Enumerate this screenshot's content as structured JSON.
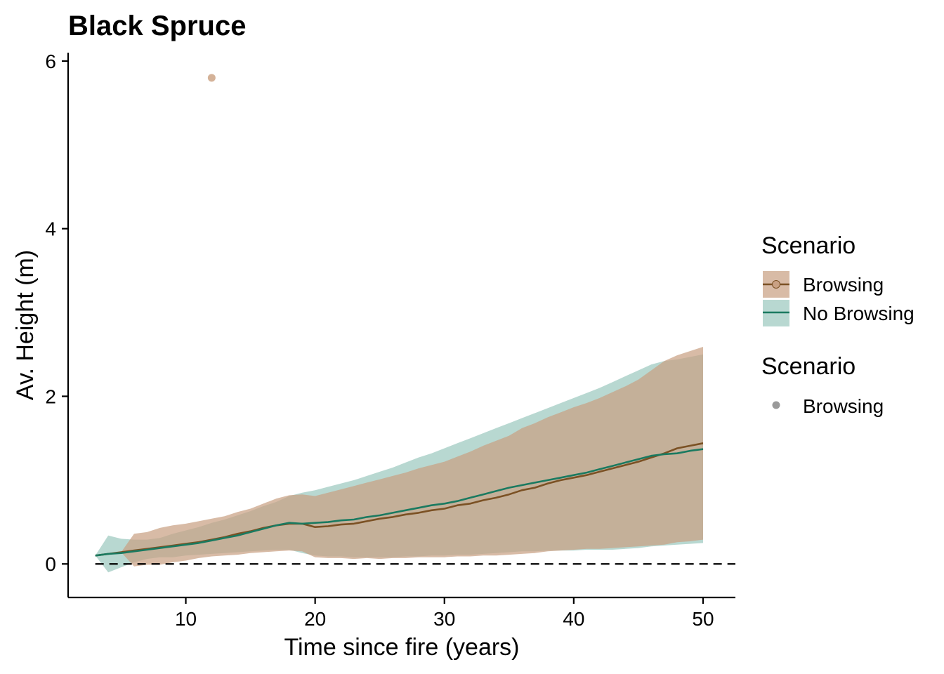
{
  "chart_data": {
    "type": "line",
    "title": "Black Spruce",
    "xlabel": "Time since fire (years)",
    "ylabel": "Av. Height (m)",
    "xlim": [
      0.9,
      52.5
    ],
    "ylim": [
      -0.4,
      6.1
    ],
    "xticks": [
      10,
      20,
      30,
      40,
      50
    ],
    "yticks": [
      0,
      2,
      4,
      6
    ],
    "reference_line": {
      "y": 0,
      "style": "dashed"
    },
    "grid": false,
    "legend_position": "right",
    "legends": [
      {
        "title": "Scenario",
        "entries": [
          "Browsing",
          "No Browsing"
        ]
      },
      {
        "title": "Scenario",
        "entries": [
          "Browsing"
        ]
      }
    ],
    "x": [
      3,
      4,
      5,
      6,
      7,
      8,
      9,
      10,
      11,
      12,
      13,
      14,
      15,
      16,
      17,
      18,
      19,
      20,
      21,
      22,
      23,
      24,
      25,
      26,
      27,
      28,
      29,
      30,
      31,
      32,
      33,
      34,
      35,
      36,
      37,
      38,
      39,
      40,
      41,
      42,
      43,
      44,
      45,
      46,
      47,
      48,
      49,
      50
    ],
    "series": [
      {
        "name": "Browsing",
        "color": "#7b5124",
        "band_color": "#c9a184",
        "mean": [
          0.1,
          0.12,
          0.14,
          0.16,
          0.18,
          0.2,
          0.22,
          0.24,
          0.26,
          0.29,
          0.32,
          0.36,
          0.39,
          0.43,
          0.46,
          0.48,
          0.48,
          0.44,
          0.45,
          0.47,
          0.48,
          0.51,
          0.54,
          0.56,
          0.59,
          0.61,
          0.64,
          0.66,
          0.7,
          0.72,
          0.76,
          0.79,
          0.83,
          0.88,
          0.91,
          0.96,
          1.0,
          1.03,
          1.06,
          1.1,
          1.14,
          1.18,
          1.22,
          1.27,
          1.32,
          1.38,
          1.41,
          1.44
        ],
        "lower": [
          0.1,
          0.12,
          0.14,
          -0.03,
          -0.01,
          -0.01,
          0.02,
          0.04,
          0.07,
          0.09,
          0.1,
          0.11,
          0.13,
          0.14,
          0.15,
          0.16,
          0.15,
          0.08,
          0.07,
          0.07,
          0.06,
          0.07,
          0.06,
          0.07,
          0.07,
          0.08,
          0.08,
          0.08,
          0.09,
          0.09,
          0.1,
          0.1,
          0.11,
          0.12,
          0.13,
          0.15,
          0.16,
          0.17,
          0.18,
          0.18,
          0.19,
          0.2,
          0.21,
          0.22,
          0.23,
          0.26,
          0.27,
          0.29
        ],
        "upper": [
          0.1,
          0.12,
          0.14,
          0.36,
          0.38,
          0.43,
          0.46,
          0.48,
          0.51,
          0.54,
          0.57,
          0.62,
          0.66,
          0.72,
          0.78,
          0.82,
          0.83,
          0.81,
          0.85,
          0.89,
          0.93,
          0.97,
          1.01,
          1.05,
          1.09,
          1.14,
          1.18,
          1.22,
          1.28,
          1.34,
          1.41,
          1.47,
          1.53,
          1.62,
          1.68,
          1.75,
          1.81,
          1.87,
          1.92,
          1.98,
          2.05,
          2.12,
          2.2,
          2.31,
          2.42,
          2.49,
          2.54,
          2.59
        ]
      },
      {
        "name": "No Browsing",
        "color": "#1a7a60",
        "band_color": "#9cc9bf",
        "mean": [
          0.1,
          0.12,
          0.13,
          0.15,
          0.17,
          0.19,
          0.21,
          0.23,
          0.25,
          0.28,
          0.31,
          0.34,
          0.38,
          0.42,
          0.46,
          0.49,
          0.48,
          0.49,
          0.5,
          0.52,
          0.53,
          0.56,
          0.58,
          0.61,
          0.64,
          0.67,
          0.7,
          0.72,
          0.75,
          0.79,
          0.83,
          0.87,
          0.91,
          0.94,
          0.97,
          1.0,
          1.03,
          1.06,
          1.09,
          1.13,
          1.17,
          1.21,
          1.25,
          1.29,
          1.31,
          1.32,
          1.35,
          1.37
        ],
        "lower": [
          0.1,
          -0.1,
          -0.04,
          0.02,
          0.06,
          0.08,
          0.08,
          0.1,
          0.11,
          0.12,
          0.13,
          0.14,
          0.15,
          0.16,
          0.17,
          0.17,
          0.13,
          0.1,
          0.09,
          0.09,
          0.08,
          0.08,
          0.08,
          0.08,
          0.09,
          0.09,
          0.1,
          0.1,
          0.11,
          0.11,
          0.12,
          0.13,
          0.14,
          0.15,
          0.15,
          0.16,
          0.16,
          0.16,
          0.17,
          0.17,
          0.17,
          0.18,
          0.19,
          0.21,
          0.22,
          0.23,
          0.24,
          0.25
        ],
        "upper": [
          0.1,
          0.34,
          0.3,
          0.29,
          0.29,
          0.31,
          0.36,
          0.4,
          0.44,
          0.49,
          0.53,
          0.58,
          0.63,
          0.69,
          0.74,
          0.81,
          0.85,
          0.88,
          0.92,
          0.96,
          1.0,
          1.05,
          1.1,
          1.15,
          1.21,
          1.27,
          1.32,
          1.38,
          1.44,
          1.5,
          1.56,
          1.62,
          1.68,
          1.74,
          1.8,
          1.86,
          1.92,
          1.98,
          2.04,
          2.1,
          2.17,
          2.24,
          2.31,
          2.38,
          2.42,
          2.44,
          2.47,
          2.5
        ]
      }
    ],
    "points": [
      {
        "series": "Browsing",
        "x": 12,
        "y": 5.8,
        "color": "#d4b298"
      }
    ]
  }
}
